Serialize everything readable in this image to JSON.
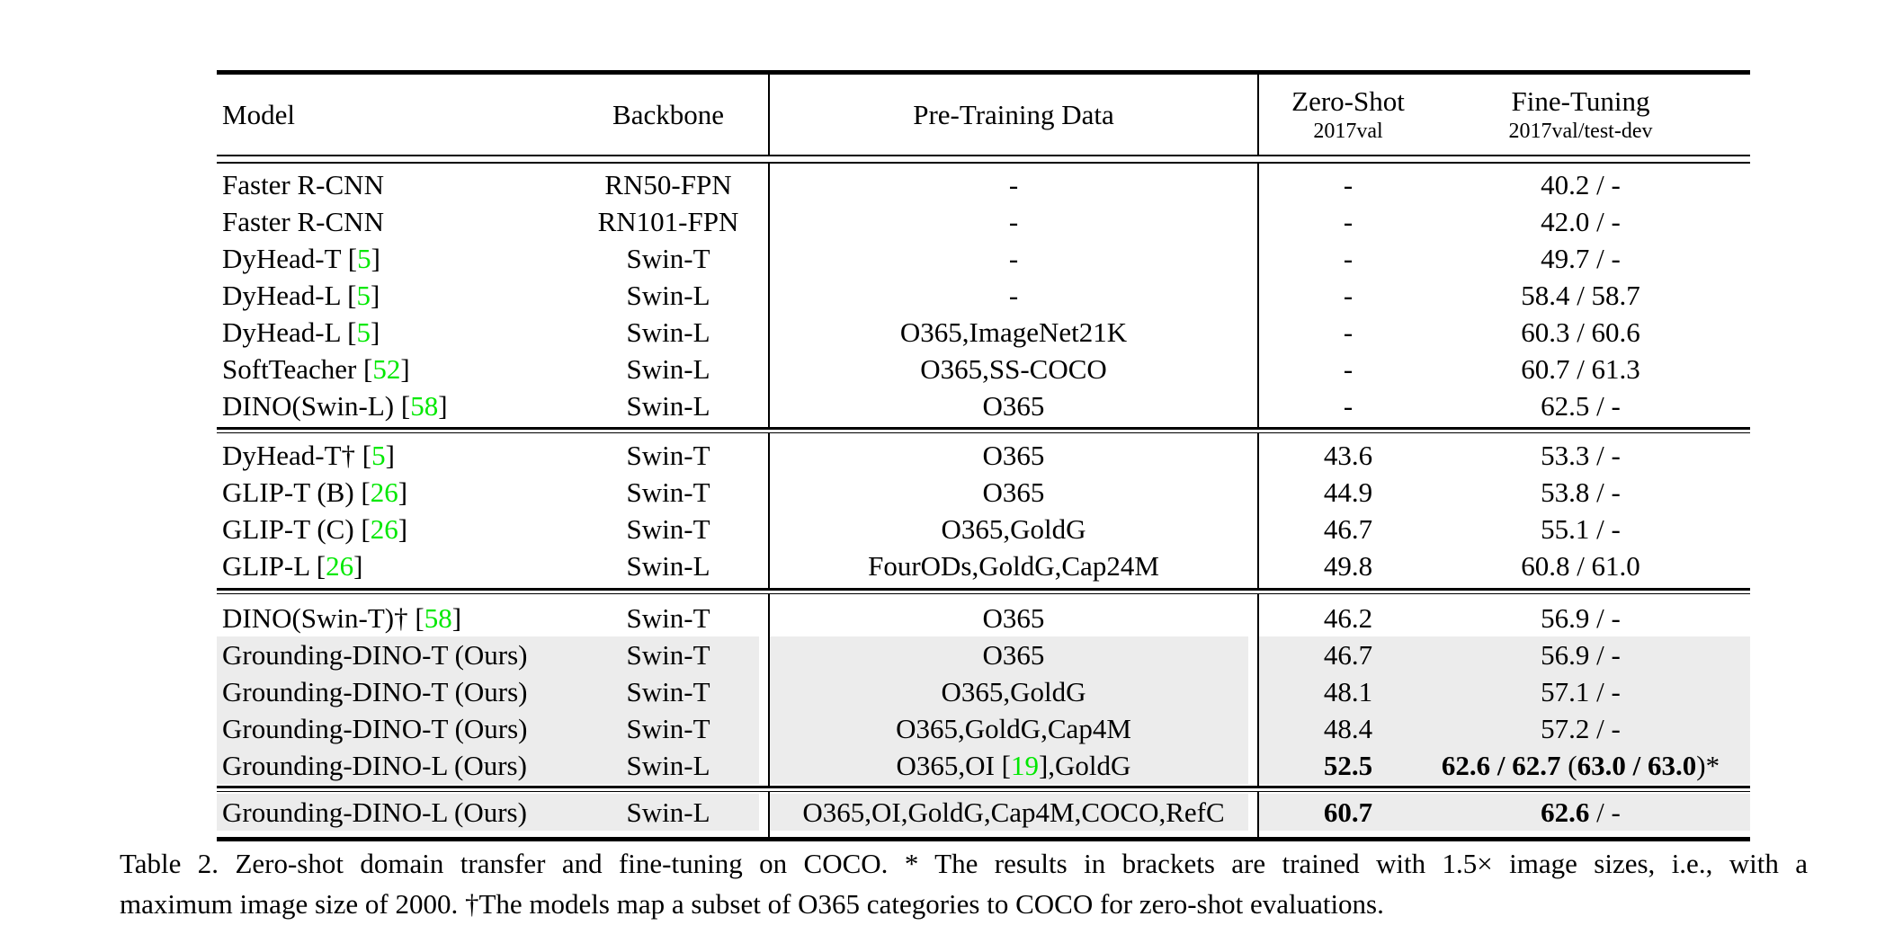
{
  "colors": {
    "citation_green": "#00e800",
    "row_highlight": "#ececec"
  },
  "header": {
    "col_model": "Model",
    "col_backbone": "Backbone",
    "col_pretrain": "Pre-Training Data",
    "col_zeroshot": "Zero-Shot",
    "col_zeroshot_sub": "2017val",
    "col_finetune": "Fine-Tuning",
    "col_finetune_sub": "2017val/test-dev"
  },
  "rows": [
    {
      "model_pre": "Faster R-CNN",
      "model_ref": "",
      "model_post": "",
      "backbone": "RN50-FPN",
      "pretrain_pre": "-",
      "pretrain_ref": "",
      "pretrain_post": "",
      "zero_shot": "-",
      "fine_tuning": "40.2 / -"
    },
    {
      "model_pre": "Faster R-CNN",
      "model_ref": "",
      "model_post": "",
      "backbone": "RN101-FPN",
      "pretrain_pre": "-",
      "pretrain_ref": "",
      "pretrain_post": "",
      "zero_shot": "-",
      "fine_tuning": "42.0 / -"
    },
    {
      "model_pre": "DyHead-T [",
      "model_ref": "5",
      "model_post": "]",
      "backbone": "Swin-T",
      "pretrain_pre": "-",
      "pretrain_ref": "",
      "pretrain_post": "",
      "zero_shot": "-",
      "fine_tuning": "49.7 / -"
    },
    {
      "model_pre": "DyHead-L [",
      "model_ref": "5",
      "model_post": "]",
      "backbone": "Swin-L",
      "pretrain_pre": "-",
      "pretrain_ref": "",
      "pretrain_post": "",
      "zero_shot": "-",
      "fine_tuning": "58.4 / 58.7"
    },
    {
      "model_pre": "DyHead-L [",
      "model_ref": "5",
      "model_post": "]",
      "backbone": "Swin-L",
      "pretrain_pre": "O365,ImageNet21K",
      "pretrain_ref": "",
      "pretrain_post": "",
      "zero_shot": "-",
      "fine_tuning": "60.3 / 60.6"
    },
    {
      "model_pre": "SoftTeacher [",
      "model_ref": "52",
      "model_post": "]",
      "backbone": "Swin-L",
      "pretrain_pre": "O365,SS-COCO",
      "pretrain_ref": "",
      "pretrain_post": "",
      "zero_shot": "-",
      "fine_tuning": "60.7 / 61.3"
    },
    {
      "model_pre": "DINO(Swin-L) [",
      "model_ref": "58",
      "model_post": "]",
      "backbone": "Swin-L",
      "pretrain_pre": "O365",
      "pretrain_ref": "",
      "pretrain_post": "",
      "zero_shot": "-",
      "fine_tuning": "62.5 / -"
    },
    {
      "model_pre": "DyHead-T† [",
      "model_ref": "5",
      "model_post": "]",
      "backbone": "Swin-T",
      "pretrain_pre": "O365",
      "pretrain_ref": "",
      "pretrain_post": "",
      "zero_shot": "43.6",
      "fine_tuning": "53.3 / -"
    },
    {
      "model_pre": "GLIP-T (B) [",
      "model_ref": "26",
      "model_post": "]",
      "backbone": "Swin-T",
      "pretrain_pre": "O365",
      "pretrain_ref": "",
      "pretrain_post": "",
      "zero_shot": "44.9",
      "fine_tuning": "53.8 / -"
    },
    {
      "model_pre": "GLIP-T (C) [",
      "model_ref": "26",
      "model_post": "]",
      "backbone": "Swin-T",
      "pretrain_pre": "O365,GoldG",
      "pretrain_ref": "",
      "pretrain_post": "",
      "zero_shot": "46.7",
      "fine_tuning": "55.1 / -"
    },
    {
      "model_pre": "GLIP-L [",
      "model_ref": "26",
      "model_post": "]",
      "backbone": "Swin-L",
      "pretrain_pre": "FourODs,GoldG,Cap24M",
      "pretrain_ref": "",
      "pretrain_post": "",
      "zero_shot": "49.8",
      "fine_tuning": "60.8 / 61.0"
    },
    {
      "model_pre": "DINO(Swin-T)† [",
      "model_ref": "58",
      "model_post": "]",
      "backbone": "Swin-T",
      "pretrain_pre": "O365",
      "pretrain_ref": "",
      "pretrain_post": "",
      "zero_shot": "46.2",
      "fine_tuning": "56.9 / -"
    },
    {
      "model_pre": "Grounding-DINO-T (Ours)",
      "model_ref": "",
      "model_post": "",
      "backbone": "Swin-T",
      "pretrain_pre": "O365",
      "pretrain_ref": "",
      "pretrain_post": "",
      "zero_shot": "46.7",
      "fine_tuning": "56.9 / -"
    },
    {
      "model_pre": "Grounding-DINO-T (Ours)",
      "model_ref": "",
      "model_post": "",
      "backbone": "Swin-T",
      "pretrain_pre": "O365,GoldG",
      "pretrain_ref": "",
      "pretrain_post": "",
      "zero_shot": "48.1",
      "fine_tuning": "57.1 / -"
    },
    {
      "model_pre": "Grounding-DINO-T (Ours)",
      "model_ref": "",
      "model_post": "",
      "backbone": "Swin-T",
      "pretrain_pre": "O365,GoldG,Cap4M",
      "pretrain_ref": "",
      "pretrain_post": "",
      "zero_shot": "48.4",
      "fine_tuning": "57.2 / -"
    },
    {
      "model_pre": "Grounding-DINO-L (Ours)",
      "model_ref": "",
      "model_post": "",
      "backbone": "Swin-L",
      "pretrain_pre": "O365,OI [",
      "pretrain_ref": "19",
      "pretrain_post": "],GoldG",
      "zero_shot": "52.5",
      "ft1": "62.6 / 62.7 ",
      "ft2": "(",
      "ft3": "63.0 / 63.0",
      "ft4": ")*"
    },
    {
      "model_pre": "Grounding-DINO-L (Ours)",
      "model_ref": "",
      "model_post": "",
      "backbone": "Swin-L",
      "pretrain_pre": "O365,OI,GoldG,Cap4M,COCO,RefC",
      "pretrain_ref": "",
      "pretrain_post": "",
      "zero_shot": "60.7",
      "ft1": "62.6",
      "ft2": " / -"
    }
  ],
  "caption": {
    "line1": "Table 2.  Zero-shot domain transfer and fine-tuning on COCO. * The results in brackets are trained with 1.5× image sizes, i.e., with a",
    "line2": "maximum image size of 2000. †The models map a subset of O365 categories to COCO for zero-shot evaluations."
  }
}
